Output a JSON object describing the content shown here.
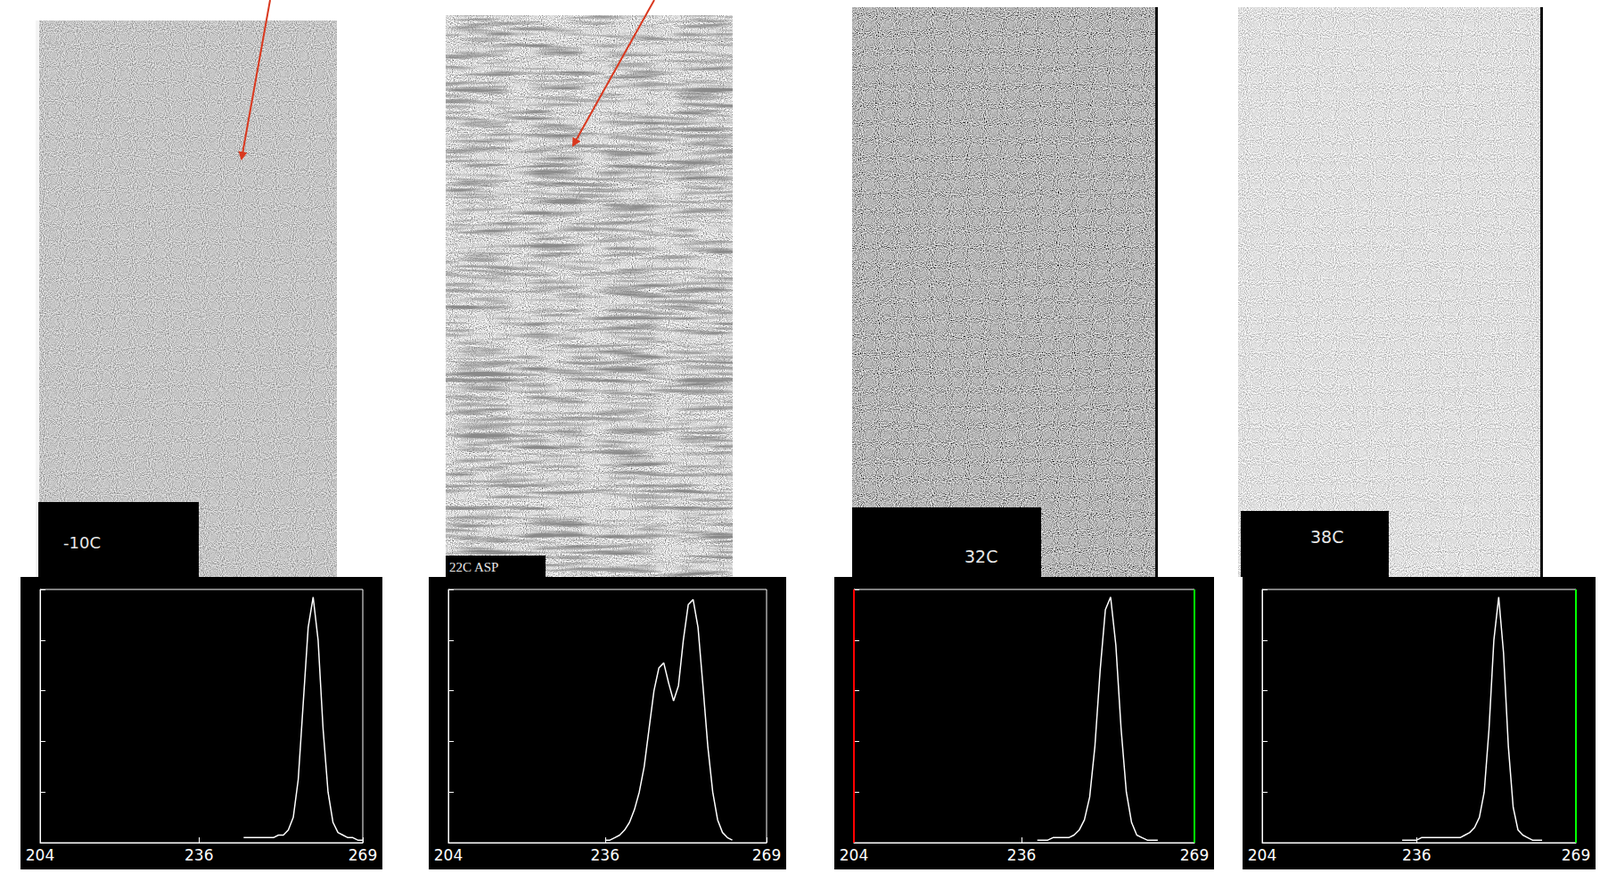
{
  "images": [
    {
      "label": "-10C"
    },
    {
      "label": "22C ASP"
    },
    {
      "label": "32C"
    },
    {
      "label": "38C"
    }
  ],
  "chart_data": [
    {
      "type": "line",
      "color": "#ffffff",
      "xlim": [
        204,
        269
      ],
      "xticks": [
        204,
        236,
        269
      ],
      "ylim": [
        0,
        1
      ],
      "yticks": [
        0,
        0.2,
        0.4,
        0.6,
        0.8,
        1
      ],
      "tick_labels": "x",
      "grid": false,
      "x": [
        245,
        246,
        247,
        248,
        249,
        250,
        251,
        252,
        253,
        254,
        255,
        256,
        257,
        258,
        259,
        260,
        261,
        262,
        263,
        264,
        265,
        266,
        267,
        268,
        269
      ],
      "values": [
        0.02,
        0.02,
        0.02,
        0.02,
        0.02,
        0.02,
        0.02,
        0.03,
        0.03,
        0.05,
        0.1,
        0.25,
        0.55,
        0.85,
        0.97,
        0.8,
        0.45,
        0.2,
        0.08,
        0.04,
        0.03,
        0.02,
        0.02,
        0.01,
        0.01
      ]
    },
    {
      "type": "line",
      "color": "#ffffff",
      "xlim": [
        204,
        269
      ],
      "xticks": [
        204,
        236,
        269
      ],
      "ylim": [
        0,
        1
      ],
      "yticks": [
        0,
        0.2,
        0.4,
        0.6,
        0.8,
        1
      ],
      "tick_labels": "x",
      "grid": false,
      "x": [
        236,
        237,
        238,
        239,
        240,
        241,
        242,
        243,
        244,
        245,
        246,
        247,
        248,
        249,
        250,
        251,
        252,
        253,
        254,
        255,
        256,
        257,
        258,
        259,
        260,
        261,
        262
      ],
      "values": [
        0.01,
        0.01,
        0.02,
        0.03,
        0.05,
        0.08,
        0.13,
        0.2,
        0.3,
        0.45,
        0.6,
        0.69,
        0.71,
        0.63,
        0.56,
        0.62,
        0.8,
        0.94,
        0.96,
        0.85,
        0.62,
        0.38,
        0.2,
        0.09,
        0.04,
        0.02,
        0.01
      ]
    },
    {
      "type": "line",
      "color": "#ffffff",
      "xlim": [
        204,
        269
      ],
      "xticks": [
        204,
        236,
        269
      ],
      "ylim": [
        0,
        1
      ],
      "yticks": [
        0,
        0.2,
        0.4,
        0.6,
        0.8,
        1
      ],
      "tick_labels": "x",
      "grid": false,
      "x": [
        239,
        240,
        241,
        242,
        243,
        244,
        245,
        246,
        247,
        248,
        249,
        250,
        251,
        252,
        253,
        254,
        255,
        256,
        257,
        258,
        259,
        260,
        261,
        262
      ],
      "values": [
        0.01,
        0.01,
        0.01,
        0.02,
        0.02,
        0.02,
        0.02,
        0.03,
        0.05,
        0.09,
        0.18,
        0.38,
        0.68,
        0.92,
        0.97,
        0.78,
        0.45,
        0.2,
        0.08,
        0.03,
        0.02,
        0.01,
        0.01,
        0.01
      ],
      "vlines": [
        {
          "x": 204,
          "color": "#ff0000"
        },
        {
          "x": 269,
          "color": "#00ff00"
        }
      ]
    },
    {
      "type": "line",
      "color": "#ffffff",
      "xlim": [
        204,
        269
      ],
      "xticks": [
        204,
        236,
        269
      ],
      "ylim": [
        0,
        1
      ],
      "yticks": [
        0,
        0.2,
        0.4,
        0.6,
        0.8,
        1
      ],
      "tick_labels": "x",
      "grid": false,
      "x": [
        233,
        234,
        235,
        236,
        237,
        238,
        239,
        240,
        241,
        242,
        243,
        244,
        245,
        246,
        247,
        248,
        249,
        250,
        251,
        252,
        253,
        254,
        255,
        256,
        257,
        258,
        259,
        260,
        261,
        262
      ],
      "values": [
        0.01,
        0.01,
        0.01,
        0.01,
        0.02,
        0.02,
        0.02,
        0.02,
        0.02,
        0.02,
        0.02,
        0.02,
        0.02,
        0.03,
        0.04,
        0.06,
        0.1,
        0.2,
        0.45,
        0.8,
        0.97,
        0.75,
        0.38,
        0.14,
        0.05,
        0.03,
        0.02,
        0.01,
        0.01,
        0.01
      ],
      "vlines": [
        {
          "x": 269,
          "color": "#00ff00"
        }
      ]
    }
  ]
}
